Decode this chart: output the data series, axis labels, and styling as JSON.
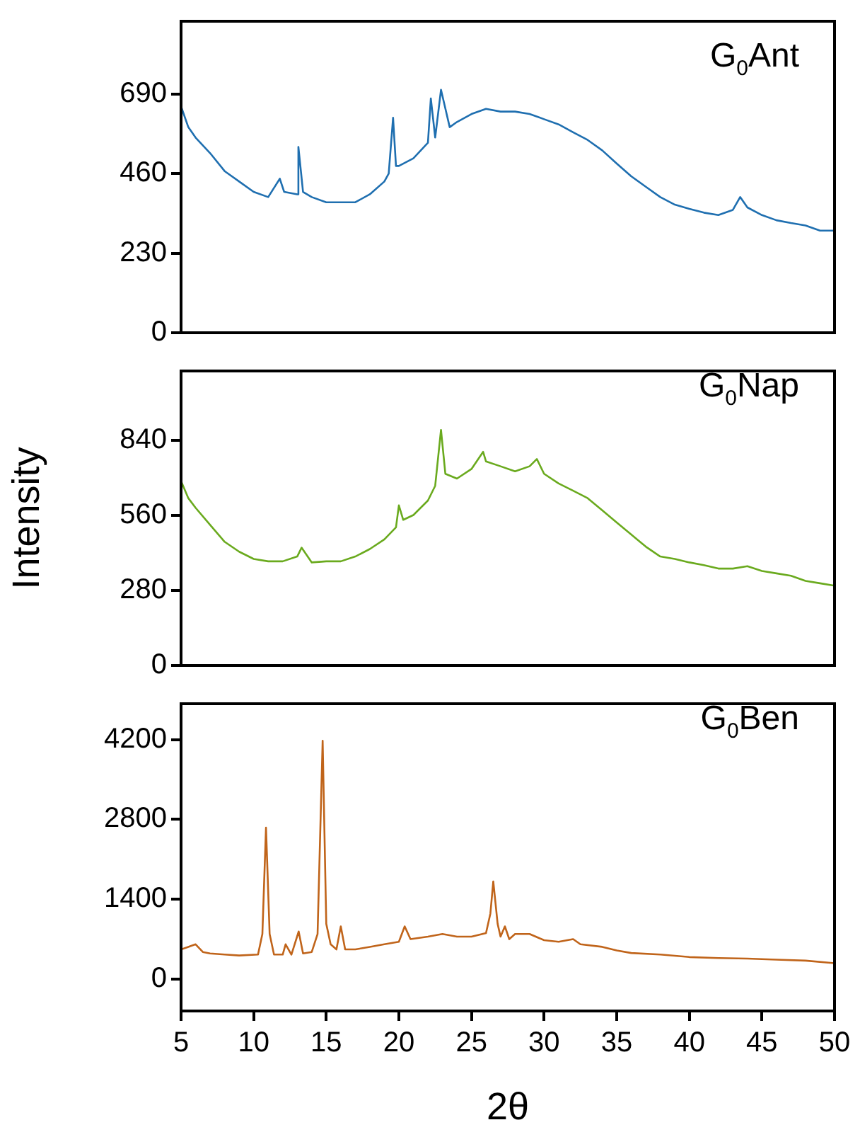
{
  "chart_data": [
    {
      "type": "line",
      "annotations": [
        "G$_{0}$Ant"
      ],
      "xlim": [
        5,
        50
      ],
      "ylim": [
        0,
        900
      ],
      "yticks": [
        0,
        230,
        460,
        690
      ],
      "tick_labels": "y",
      "series": [
        {
          "color": "#1f6fb0",
          "x": [
            5,
            5.5,
            6,
            7,
            8,
            9,
            10,
            11,
            11.8,
            12.1,
            13,
            13.08,
            13.4,
            14,
            15,
            16,
            17,
            18,
            19,
            19.3,
            19.6,
            19.8,
            20,
            21,
            22,
            22.2,
            22.5,
            22.9,
            23.5,
            24,
            25,
            26,
            27,
            28,
            29,
            30,
            31,
            32,
            33,
            34,
            35,
            36,
            37,
            38,
            39,
            40,
            41,
            42,
            43,
            43.5,
            44,
            45,
            46,
            47,
            48,
            49,
            50
          ],
          "values": [
            654,
            594,
            564,
            519,
            467,
            437,
            407,
            392,
            445,
            407,
            400,
            537,
            407,
            392,
            377,
            377,
            377,
            400,
            437,
            460,
            621,
            482,
            482,
            504,
            549,
            677,
            564,
            702,
            594,
            609,
            632,
            647,
            639,
            639,
            632,
            617,
            602,
            579,
            557,
            527,
            489,
            452,
            422,
            392,
            370,
            358,
            347,
            340,
            355,
            392,
            362,
            340,
            325,
            317,
            310,
            295,
            295
          ]
        }
      ]
    },
    {
      "type": "line",
      "annotations": [
        "G$_{0}$Nap"
      ],
      "ylabel": "Intensity",
      "xlim": [
        5,
        50
      ],
      "ylim": [
        0,
        1100
      ],
      "yticks": [
        0,
        280,
        560,
        840
      ],
      "tick_labels": "y",
      "series": [
        {
          "color": "#6aaa1e",
          "x": [
            5,
            5.5,
            6,
            7,
            8,
            9,
            10,
            11,
            12,
            13,
            13.3,
            14,
            15,
            16,
            17,
            18,
            19,
            19.8,
            20,
            20.3,
            21,
            22,
            22.5,
            22.9,
            23.2,
            24,
            25,
            25.8,
            26,
            27,
            28,
            29,
            29.5,
            30,
            31,
            32,
            33,
            34,
            35,
            36,
            37,
            38,
            39,
            40,
            41,
            42,
            43,
            44,
            45,
            46,
            47,
            48,
            49,
            50
          ],
          "values": [
            689,
            625,
            589,
            525,
            462,
            425,
            398,
            389,
            389,
            407,
            440,
            385,
            389,
            389,
            407,
            435,
            471,
            516,
            598,
            544,
            562,
            616,
            671,
            880,
            716,
            698,
            734,
            798,
            762,
            744,
            725,
            744,
            771,
            716,
            680,
            653,
            625,
            580,
            534,
            489,
            444,
            407,
            398,
            385,
            375,
            362,
            362,
            371,
            353,
            344,
            335,
            316,
            307,
            298
          ]
        }
      ]
    },
    {
      "type": "line",
      "annotations": [
        "G$_{0}$Ben"
      ],
      "xlabel": "2θ",
      "xlim": [
        5,
        50
      ],
      "xticks": [
        5,
        10,
        15,
        20,
        25,
        30,
        35,
        40,
        45,
        50
      ],
      "ylim": [
        -560,
        4830
      ],
      "yticks": [
        0,
        1400,
        2800,
        4200
      ],
      "series": [
        {
          "color": "#c0641a",
          "x": [
            5,
            5.5,
            6,
            6.5,
            7,
            8,
            9,
            10.3,
            10.6,
            10.85,
            11.1,
            11.4,
            12,
            12.2,
            12.6,
            13.1,
            13.4,
            14,
            14.4,
            14.75,
            15,
            15.3,
            15.7,
            16,
            16.3,
            17,
            18,
            19,
            20,
            20.4,
            20.8,
            22,
            23,
            24,
            25,
            26,
            26.3,
            26.5,
            26.8,
            27,
            27.3,
            27.6,
            28,
            29,
            30,
            31,
            32,
            32.5,
            34,
            35,
            36,
            38,
            40,
            42,
            44,
            46,
            48,
            50
          ],
          "values": [
            520,
            565,
            610,
            475,
            450,
            430,
            413,
            430,
            790,
            2655,
            790,
            430,
            430,
            610,
            430,
            834,
            450,
            475,
            790,
            4180,
            969,
            610,
            520,
            924,
            520,
            520,
            565,
            610,
            655,
            924,
            700,
            744,
            790,
            744,
            744,
            807,
            1148,
            1713,
            969,
            744,
            924,
            700,
            790,
            790,
            682,
            655,
            700,
            610,
            565,
            502,
            457,
            430,
            386,
            368,
            359,
            341,
            323,
            278
          ]
        }
      ]
    }
  ]
}
